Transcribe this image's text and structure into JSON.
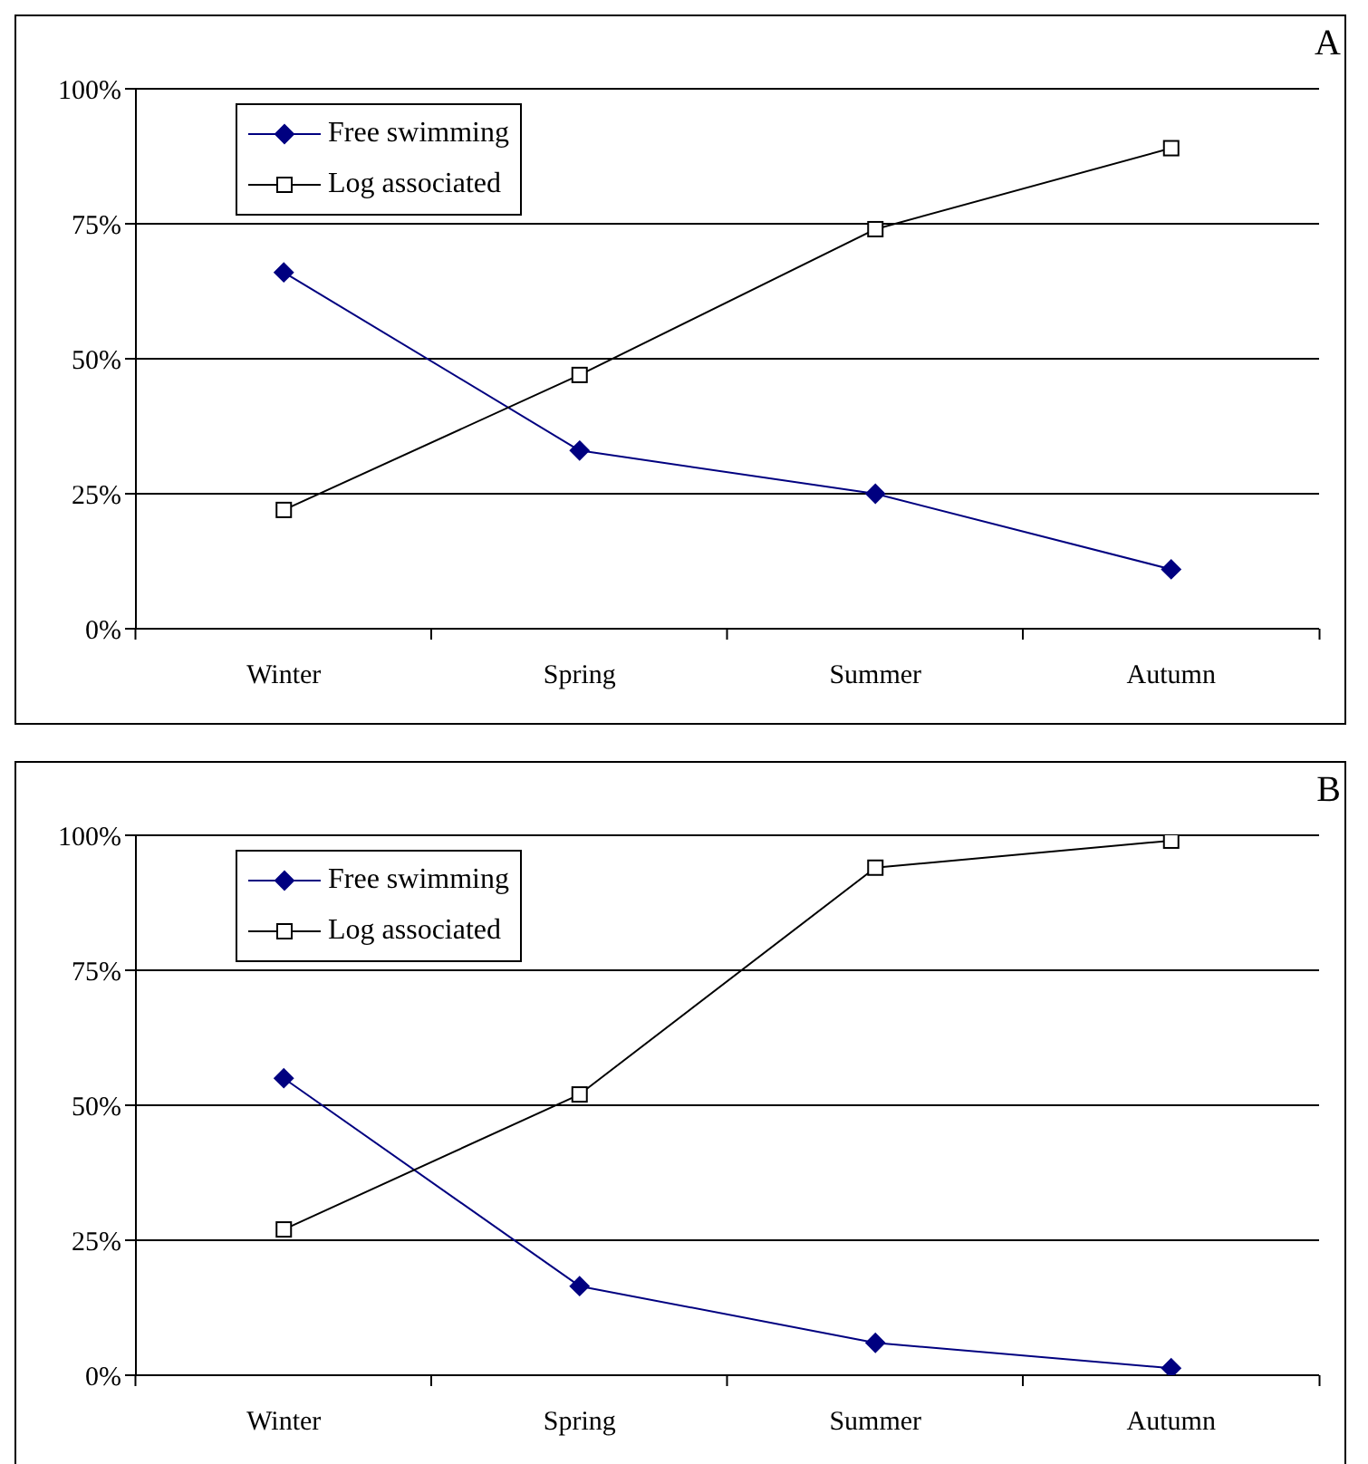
{
  "chart_data": [
    {
      "type": "line",
      "title": "A",
      "categories": [
        "Winter",
        "Spring",
        "Summer",
        "Autumn"
      ],
      "series": [
        {
          "name": "Free swimming",
          "color": "#000080",
          "marker": "diamond",
          "values": [
            66,
            33,
            25,
            11
          ]
        },
        {
          "name": "Log associated",
          "color": "#000000",
          "marker": "square",
          "values": [
            22,
            47,
            74,
            89
          ]
        }
      ],
      "ylim": [
        0,
        100
      ],
      "yticks": [
        {
          "value": 0,
          "label": "0%"
        },
        {
          "value": 25,
          "label": "25%"
        },
        {
          "value": 50,
          "label": "50%"
        },
        {
          "value": 75,
          "label": "75%"
        },
        {
          "value": 100,
          "label": "100%"
        }
      ],
      "grid": "y",
      "legend": "top left"
    },
    {
      "type": "line",
      "title": "B",
      "categories": [
        "Winter",
        "Spring",
        "Summer",
        "Autumn"
      ],
      "series": [
        {
          "name": "Free swimming",
          "color": "#000080",
          "marker": "diamond",
          "values": [
            55,
            16.5,
            6,
            1.3
          ]
        },
        {
          "name": "Log associated",
          "color": "#000000",
          "marker": "square",
          "values": [
            27,
            52,
            94,
            99
          ]
        }
      ],
      "ylim": [
        0,
        100
      ],
      "yticks": [
        {
          "value": 0,
          "label": "0%"
        },
        {
          "value": 25,
          "label": "25%"
        },
        {
          "value": 50,
          "label": "50%"
        },
        {
          "value": 75,
          "label": "75%"
        },
        {
          "value": 100,
          "label": "100%"
        }
      ],
      "grid": "y",
      "legend": "top left"
    }
  ]
}
